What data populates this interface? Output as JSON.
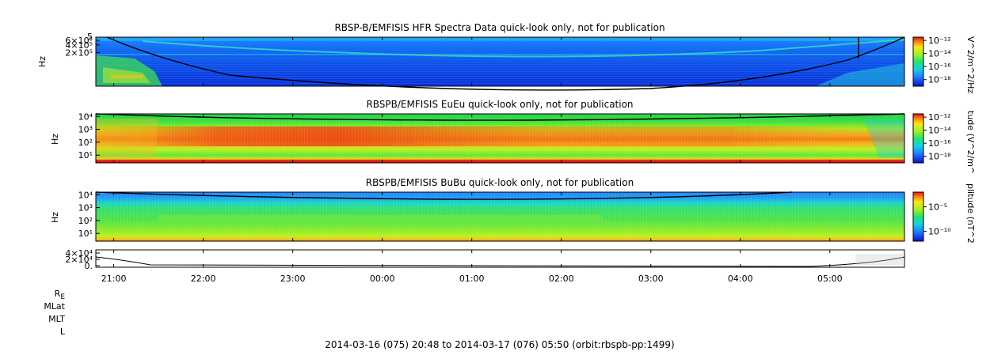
{
  "chart_data": [
    {
      "type": "heatmap",
      "title": "RBSP-B/EMFISIS  HFR Spectra Data quick-look only, not for publication",
      "ylabel": "Hz",
      "y_ticks": [
        "6×10⁵",
        "4×10⁵",
        "2×10⁵"
      ],
      "y_tick_extra": "5",
      "y_tick_values": [
        600000,
        400000,
        200000
      ],
      "colorbar": {
        "label": "V^2/m^2/Hz",
        "ticks": [
          "10⁻¹²",
          "10⁻¹⁴",
          "10⁻¹⁶",
          "10⁻¹⁸"
        ],
        "tick_exponents": [
          -12,
          -14,
          -16,
          -18
        ]
      }
    },
    {
      "type": "heatmap",
      "title": "RBSPB/EMFISIS  EuEu quick-look only, not for publication",
      "ylabel": "Hz",
      "y_ticks": [
        "10⁴",
        "10³",
        "10²",
        "10¹"
      ],
      "y_tick_exponents": [
        4,
        3,
        2,
        1
      ],
      "colorbar": {
        "label": "tude (V^2/m^",
        "ticks": [
          "10⁻¹²",
          "10⁻¹⁴",
          "10⁻¹⁶",
          "10⁻¹⁸"
        ],
        "tick_exponents": [
          -12,
          -14,
          -16,
          -18
        ]
      }
    },
    {
      "type": "heatmap",
      "title": "RBSPB/EMFISIS  BuBu quick-look only, not for publication",
      "ylabel": "Hz",
      "y_ticks": [
        "10⁴",
        "10³",
        "10²",
        "10¹"
      ],
      "y_tick_exponents": [
        4,
        3,
        2,
        1
      ],
      "colorbar": {
        "label": "plitude (nT^2",
        "ticks": [
          "10⁻⁵",
          "10⁻¹⁰"
        ],
        "tick_exponents": [
          -5,
          -10
        ]
      }
    },
    {
      "type": "line",
      "title": "",
      "y_ticks": [
        "4×10⁴",
        "2×10⁴",
        "0."
      ],
      "y_tick_values": [
        40000,
        20000,
        0
      ],
      "x_ticks": [
        "21:00",
        "22:00",
        "23:00",
        "00:00",
        "01:00",
        "02:00",
        "03:00",
        "04:00",
        "05:00"
      ]
    }
  ],
  "ephemeris_labels": [
    "R",
    "MLat",
    "MLT",
    "L"
  ],
  "ephemeris_r_subscript": "E",
  "footer": "2014-03-16 (075) 20:48 to 2014-03-17 (076) 05:50 (orbit:rbspb-pp:1499)"
}
